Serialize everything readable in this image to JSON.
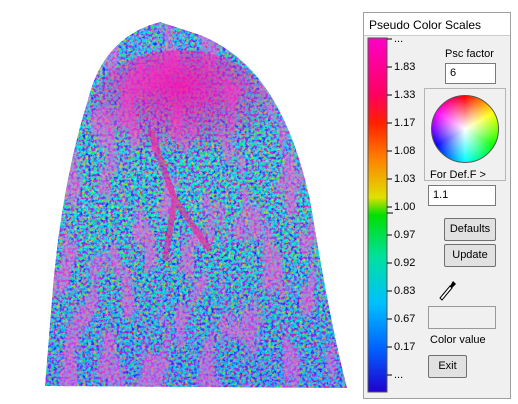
{
  "window": {
    "title": "Pseudo Color Scales"
  },
  "scale": {
    "labels": [
      "...",
      "1.83",
      "1.33",
      "1.17",
      "1.08",
      "1.03",
      "1.00",
      "0.97",
      "0.92",
      "0.83",
      "0.67",
      "0.17",
      "..."
    ]
  },
  "controls": {
    "psc_factor_label": "Psc factor",
    "psc_factor_value": "6",
    "def_f_label": "For Def.F >",
    "def_f_value": "1.1",
    "defaults_button": "Defaults",
    "update_button": "Update",
    "color_value_label": "Color value",
    "exit_button": "Exit"
  }
}
